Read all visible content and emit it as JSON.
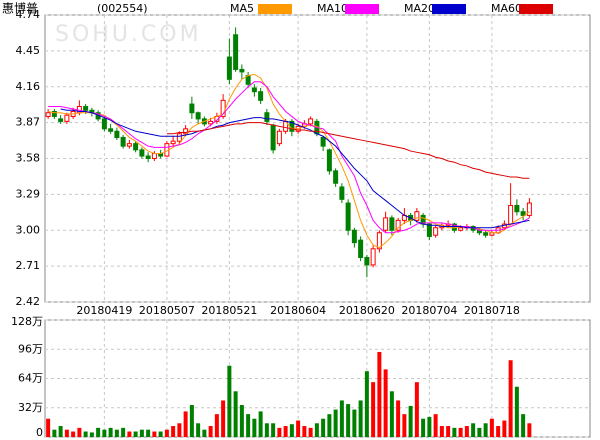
{
  "chart_data": {
    "type": "candlestick",
    "title": "惠博普",
    "code": "(002554)",
    "watermark": "SOHU.COM",
    "categories": [
      null,
      null,
      null,
      null,
      null,
      null,
      null,
      null,
      null,
      "20180419",
      null,
      null,
      null,
      null,
      null,
      null,
      null,
      null,
      null,
      "20180507",
      null,
      null,
      null,
      null,
      null,
      null,
      null,
      null,
      null,
      "20180521",
      null,
      null,
      null,
      null,
      null,
      null,
      null,
      null,
      null,
      null,
      "20180604",
      null,
      null,
      null,
      null,
      null,
      null,
      null,
      null,
      null,
      null,
      "20180620",
      null,
      null,
      null,
      null,
      null,
      null,
      null,
      null,
      null,
      "20180704",
      null,
      null,
      null,
      null,
      null,
      null,
      null,
      null,
      null,
      "20180718",
      null,
      null,
      null,
      null,
      null,
      null
    ],
    "open": [
      3.92,
      3.96,
      3.9,
      3.88,
      3.92,
      3.95,
      4.0,
      3.97,
      3.95,
      3.9,
      3.82,
      3.8,
      3.75,
      3.68,
      3.7,
      3.65,
      3.6,
      3.58,
      3.62,
      3.6,
      3.7,
      3.72,
      3.78,
      4.02,
      3.95,
      3.9,
      3.86,
      3.88,
      3.92,
      4.4,
      4.58,
      4.3,
      4.25,
      4.15,
      4.12,
      3.95,
      3.85,
      3.7,
      3.8,
      3.88,
      3.8,
      3.84,
      3.86,
      3.88,
      3.75,
      3.65,
      3.48,
      3.35,
      3.22,
      3.0,
      2.92,
      2.78,
      2.72,
      2.85,
      3.0,
      3.1,
      3.0,
      3.08,
      3.12,
      3.08,
      3.12,
      3.05,
      2.96,
      3.02,
      3.04,
      3.05,
      3.0,
      3.02,
      3.03,
      3.0,
      2.98,
      2.96,
      2.98,
      3.02,
      3.05,
      3.2,
      3.15,
      3.12
    ],
    "high": [
      3.98,
      3.98,
      3.93,
      3.95,
      3.99,
      4.05,
      4.02,
      3.99,
      3.97,
      3.92,
      3.86,
      3.83,
      3.77,
      3.73,
      3.72,
      3.67,
      3.63,
      3.64,
      3.65,
      3.72,
      3.76,
      3.8,
      3.85,
      4.08,
      3.96,
      3.92,
      3.91,
      3.95,
      4.1,
      4.55,
      4.64,
      4.34,
      4.28,
      4.18,
      4.15,
      3.98,
      3.86,
      3.82,
      3.9,
      3.9,
      3.86,
      3.89,
      3.92,
      3.9,
      3.76,
      3.66,
      3.5,
      3.38,
      3.25,
      3.02,
      2.95,
      2.8,
      2.88,
      3.0,
      3.15,
      3.12,
      3.1,
      3.18,
      3.14,
      3.18,
      3.14,
      3.06,
      3.04,
      3.06,
      3.08,
      3.06,
      3.04,
      3.05,
      3.04,
      3.02,
      3.0,
      3.0,
      3.04,
      3.08,
      3.38,
      3.25,
      3.18,
      3.26
    ],
    "low": [
      3.9,
      3.9,
      3.86,
      3.86,
      3.9,
      3.93,
      3.94,
      3.92,
      3.88,
      3.8,
      3.78,
      3.73,
      3.66,
      3.66,
      3.63,
      3.58,
      3.55,
      3.56,
      3.58,
      3.59,
      3.68,
      3.7,
      3.76,
      3.9,
      3.86,
      3.84,
      3.84,
      3.86,
      3.9,
      4.18,
      4.28,
      4.22,
      4.15,
      4.08,
      4.02,
      3.85,
      3.62,
      3.68,
      3.78,
      3.76,
      3.78,
      3.82,
      3.84,
      3.76,
      3.64,
      3.45,
      3.35,
      3.22,
      2.96,
      2.86,
      2.75,
      2.62,
      2.7,
      2.82,
      2.98,
      2.96,
      2.98,
      3.05,
      3.04,
      3.06,
      3.02,
      2.92,
      2.94,
      3.0,
      3.02,
      2.98,
      2.99,
      3.0,
      2.98,
      2.96,
      2.94,
      2.95,
      2.97,
      3.0,
      3.04,
      3.12,
      3.08,
      3.1
    ],
    "close": [
      3.95,
      3.92,
      3.88,
      3.93,
      3.96,
      4.0,
      3.97,
      3.95,
      3.9,
      3.82,
      3.8,
      3.75,
      3.68,
      3.7,
      3.65,
      3.6,
      3.58,
      3.62,
      3.6,
      3.7,
      3.72,
      3.78,
      3.82,
      3.95,
      3.9,
      3.86,
      3.88,
      3.92,
      4.05,
      4.22,
      4.3,
      4.28,
      4.18,
      4.12,
      4.05,
      3.88,
      3.65,
      3.8,
      3.88,
      3.8,
      3.84,
      3.86,
      3.9,
      3.78,
      3.68,
      3.48,
      3.38,
      3.25,
      3.0,
      2.9,
      2.78,
      2.72,
      2.85,
      2.98,
      3.1,
      3.0,
      3.08,
      3.12,
      3.08,
      3.15,
      3.05,
      2.95,
      3.02,
      3.04,
      3.05,
      3.0,
      3.02,
      3.03,
      3.0,
      2.98,
      2.96,
      2.98,
      3.02,
      3.05,
      3.2,
      3.15,
      3.12,
      3.22
    ],
    "up_color": "#ff0000",
    "down_color": "#008000",
    "series": [
      {
        "name": "MA5",
        "color": "#ff9900",
        "values": [
          3.96,
          3.95,
          3.95,
          3.94,
          3.94,
          3.95,
          3.95,
          3.95,
          3.94,
          3.93,
          3.89,
          3.85,
          3.8,
          3.75,
          3.72,
          3.68,
          3.64,
          3.62,
          3.62,
          3.64,
          3.67,
          3.7,
          3.77,
          3.83,
          3.86,
          3.88,
          3.9,
          3.92,
          3.94,
          4.06,
          4.15,
          4.22,
          4.25,
          4.26,
          4.23,
          4.15,
          4.02,
          3.94,
          3.88,
          3.82,
          3.82,
          3.84,
          3.85,
          3.84,
          3.8,
          3.72,
          3.62,
          3.52,
          3.4,
          3.24,
          3.08,
          2.96,
          2.88,
          2.86,
          2.9,
          2.95,
          3.02,
          3.06,
          3.08,
          3.1,
          3.1,
          3.08,
          3.05,
          3.04,
          3.02,
          3.02,
          3.03,
          3.03,
          3.02,
          3.01,
          3.0,
          2.98,
          2.98,
          3.0,
          3.05,
          3.08,
          3.11,
          3.15
        ]
      },
      {
        "name": "MA10",
        "color": "#ff00ff",
        "values": [
          4.0,
          4.0,
          4.0,
          3.99,
          3.98,
          3.97,
          3.96,
          3.95,
          3.94,
          3.92,
          3.9,
          3.86,
          3.82,
          3.78,
          3.74,
          3.71,
          3.68,
          3.67,
          3.67,
          3.67,
          3.68,
          3.69,
          3.71,
          3.74,
          3.78,
          3.81,
          3.85,
          3.89,
          3.94,
          4.0,
          4.06,
          4.11,
          4.16,
          4.2,
          4.2,
          4.16,
          4.08,
          4.02,
          3.96,
          3.92,
          3.88,
          3.86,
          3.85,
          3.83,
          3.82,
          3.77,
          3.72,
          3.6,
          3.52,
          3.44,
          3.3,
          3.2,
          3.08,
          3.02,
          2.98,
          2.98,
          2.99,
          3.0,
          3.02,
          3.05,
          3.06,
          3.06,
          3.06,
          3.06,
          3.05,
          3.04,
          3.03,
          3.03,
          3.02,
          3.0,
          3.0,
          3.0,
          3.0,
          3.01,
          3.03,
          3.05,
          3.07,
          3.1
        ]
      },
      {
        "name": "MA20",
        "color": "#0000cc",
        "values": [
          null,
          null,
          3.98,
          3.97,
          3.97,
          3.96,
          3.96,
          3.95,
          3.93,
          3.91,
          3.89,
          3.86,
          3.84,
          3.82,
          3.8,
          3.79,
          3.78,
          3.77,
          3.76,
          3.76,
          3.76,
          3.76,
          3.77,
          3.78,
          3.8,
          3.81,
          3.82,
          3.84,
          3.85,
          3.87,
          3.88,
          3.89,
          3.9,
          3.91,
          3.91,
          3.9,
          3.9,
          3.89,
          3.88,
          3.87,
          3.85,
          3.83,
          3.81,
          3.78,
          3.76,
          3.72,
          3.68,
          3.62,
          3.56,
          3.5,
          3.45,
          3.4,
          3.32,
          3.28,
          3.24,
          3.2,
          3.16,
          3.12,
          3.1,
          3.07,
          3.05,
          3.04,
          3.04,
          3.03,
          3.03,
          3.03,
          3.03,
          3.02,
          3.02,
          3.02,
          3.02,
          3.02,
          3.03,
          3.04,
          3.05,
          3.06,
          3.07,
          3.08
        ]
      },
      {
        "name": "MA60",
        "color": "#dd0000",
        "values": [
          null,
          null,
          null,
          null,
          null,
          null,
          null,
          null,
          null,
          null,
          null,
          null,
          null,
          null,
          null,
          null,
          null,
          null,
          null,
          3.78,
          3.78,
          3.79,
          3.79,
          3.8,
          3.8,
          3.81,
          3.82,
          3.83,
          3.84,
          3.85,
          3.86,
          3.86,
          3.87,
          3.87,
          3.87,
          3.86,
          3.85,
          3.84,
          3.83,
          3.82,
          3.81,
          3.81,
          3.8,
          3.8,
          3.79,
          3.78,
          3.77,
          3.76,
          3.75,
          3.74,
          3.73,
          3.72,
          3.71,
          3.7,
          3.69,
          3.68,
          3.67,
          3.66,
          3.64,
          3.63,
          3.62,
          3.61,
          3.59,
          3.58,
          3.56,
          3.55,
          3.53,
          3.52,
          3.5,
          3.49,
          3.47,
          3.46,
          3.45,
          3.44,
          3.43,
          3.43,
          3.42,
          3.42
        ]
      }
    ],
    "ylim": [
      2.42,
      4.74
    ],
    "yticks": [
      2.42,
      2.71,
      {
        "value": 3,
        "label": "3.00"
      },
      3.29,
      3.58,
      3.87,
      4.16,
      4.45,
      4.74
    ],
    "grid": true,
    "volume": {
      "values": [
        20,
        8,
        12,
        8,
        6,
        10,
        6,
        5,
        10,
        8,
        10,
        8,
        10,
        6,
        6,
        8,
        8,
        6,
        6,
        8,
        12,
        15,
        28,
        35,
        15,
        8,
        12,
        25,
        40,
        78,
        50,
        35,
        25,
        20,
        28,
        15,
        15,
        10,
        12,
        14,
        18,
        12,
        10,
        15,
        20,
        25,
        30,
        40,
        36,
        30,
        40,
        72,
        60,
        93,
        74,
        50,
        40,
        25,
        34,
        60,
        20,
        22,
        25,
        12,
        12,
        10,
        10,
        12,
        15,
        10,
        15,
        20,
        12,
        18,
        84,
        55,
        25,
        15
      ],
      "ylim": [
        0,
        128
      ],
      "yticks": [
        0,
        {
          "value": 32,
          "label": "32万"
        },
        {
          "value": 64,
          "label": "64万"
        },
        {
          "value": 96,
          "label": "96万"
        },
        {
          "value": 128,
          "label": "128万"
        }
      ]
    }
  }
}
